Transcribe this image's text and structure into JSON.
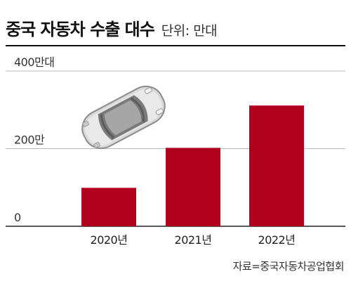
{
  "title": "중국 자동차 수출 대수",
  "subtitle": "단위: 만대",
  "source": "자료=중국자동차공업협회",
  "colors": {
    "bar": "#b0001e",
    "grid": "#bbbbbb",
    "axis": "#222222"
  },
  "chart_data": {
    "type": "bar",
    "categories": [
      "2020년",
      "2021년",
      "2022년"
    ],
    "values": [
      99,
      202,
      311
    ],
    "ylim": [
      0,
      400
    ],
    "y_ticks": [
      {
        "value": 0,
        "label": "0"
      },
      {
        "value": 200,
        "label": "200만"
      },
      {
        "value": 400,
        "label": "400만대"
      }
    ],
    "grid": true,
    "illustration": "car-icon"
  }
}
